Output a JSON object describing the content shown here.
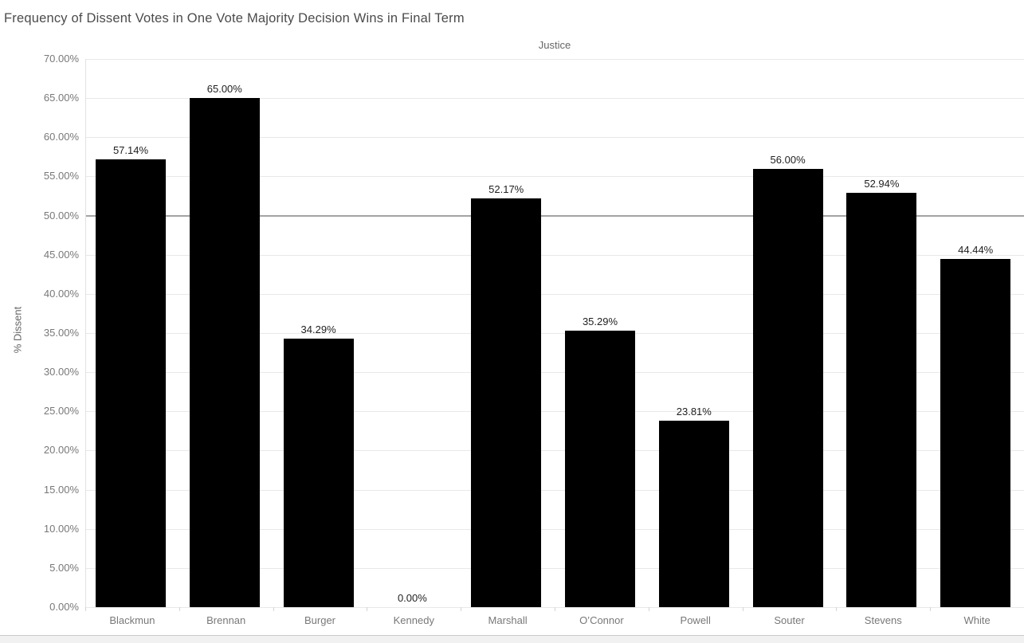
{
  "title": "Frequency of Dissent Votes in One Vote Majority Decision Wins in Final Term",
  "chart_data": {
    "type": "bar",
    "title": "Frequency of Dissent Votes in One Vote Majority Decision Wins in Final Term",
    "xlabel": "Justice",
    "ylabel": "% Dissent",
    "categories": [
      "Blackmun",
      "Brennan",
      "Burger",
      "Kennedy",
      "Marshall",
      "O’Connor",
      "Powell",
      "Souter",
      "Stevens",
      "White"
    ],
    "values": [
      57.14,
      65.0,
      34.29,
      0.0,
      52.17,
      35.29,
      23.81,
      56.0,
      52.94,
      44.44
    ],
    "value_labels": [
      "57.14%",
      "65.00%",
      "34.29%",
      "0.00%",
      "52.17%",
      "35.29%",
      "23.81%",
      "56.00%",
      "52.94%",
      "44.44%"
    ],
    "ylim": [
      0,
      70
    ],
    "y_ticks": [
      {
        "value": 0,
        "label": "0.00%"
      },
      {
        "value": 5,
        "label": "5.00%"
      },
      {
        "value": 10,
        "label": "10.00%"
      },
      {
        "value": 15,
        "label": "15.00%"
      },
      {
        "value": 20,
        "label": "20.00%"
      },
      {
        "value": 25,
        "label": "25.00%"
      },
      {
        "value": 30,
        "label": "30.00%"
      },
      {
        "value": 35,
        "label": "35.00%"
      },
      {
        "value": 40,
        "label": "40.00%"
      },
      {
        "value": 45,
        "label": "45.00%"
      },
      {
        "value": 50,
        "label": "50.00%"
      },
      {
        "value": 55,
        "label": "55.00%"
      },
      {
        "value": 60,
        "label": "60.00%"
      },
      {
        "value": 65,
        "label": "65.00%"
      },
      {
        "value": 70,
        "label": "70.00%"
      }
    ],
    "grid": true,
    "legend_position": "none",
    "reference_line": {
      "value": 50
    },
    "bar_color": "#000000"
  },
  "colors": {
    "bar": "#000000",
    "gridline": "#e8e8e8",
    "reference_line": "#a3a3a3",
    "title_text": "#4b4b4b",
    "axis_text": "#787878",
    "label_text": "#1f1f1f",
    "scrollbar_track": "#f1f1f1",
    "scrollbar_border": "#c9c9c9"
  }
}
